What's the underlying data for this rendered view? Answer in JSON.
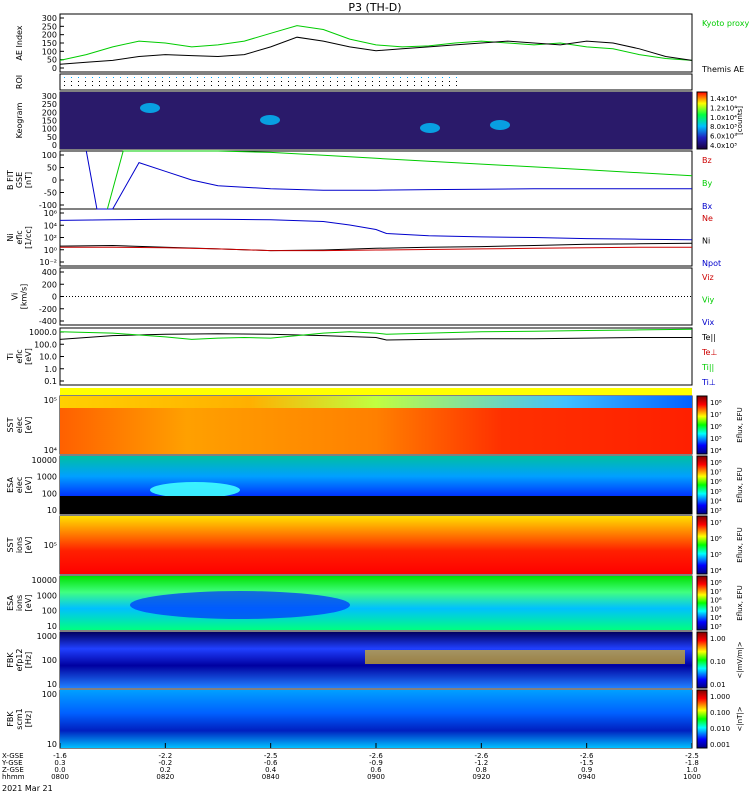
{
  "title": "P3 (TH-D)",
  "date_label": "2021 Mar 21",
  "colors": {
    "green": "#00cc00",
    "black": "#000000",
    "red": "#cc0000",
    "blue": "#0000cc"
  },
  "xaxis": {
    "row_labels": [
      "X-GSE",
      "Y-GSE",
      "Z-GSE",
      "hhmm"
    ],
    "ticks": [
      {
        "x": [
          "-1.6",
          "0.3",
          "0.0"
        ],
        "time": "0800"
      },
      {
        "x": [
          "-2.2",
          "-0.2",
          "0.2"
        ],
        "time": "0820"
      },
      {
        "x": [
          "-2.5",
          "-0.6",
          "0.4"
        ],
        "time": "0840"
      },
      {
        "x": [
          "-2.6",
          "-0.9",
          "0.6"
        ],
        "time": "0900"
      },
      {
        "x": [
          "-2.6",
          "-1.2",
          "0.8"
        ],
        "time": "0920"
      },
      {
        "x": [
          "-2.6",
          "-1.5",
          "0.9"
        ],
        "time": "0940"
      },
      {
        "x": [
          "-2.5",
          "-1.8",
          "1.0"
        ],
        "time": "1000"
      }
    ]
  },
  "panels": [
    {
      "id": "ae",
      "ylabel": [
        "AE Index"
      ],
      "yticks": [
        "300",
        "250",
        "200",
        "150",
        "100",
        "50",
        "0"
      ],
      "legend": [
        {
          "text": "Kyoto proxy AE",
          "color": "#00cc00"
        },
        {
          "text": "Themis AE",
          "color": "#000000"
        }
      ]
    },
    {
      "id": "roi",
      "ylabel": [
        "ROI"
      ],
      "yticks": []
    },
    {
      "id": "keogram",
      "ylabel": [
        "Keogram"
      ],
      "yticks": [
        "300",
        "250",
        "200",
        "150",
        "100",
        "50",
        "0"
      ],
      "cbar": {
        "ticks": [
          "1.4x10⁴",
          "1.2x10⁴",
          "1.0x10⁴",
          "8.0x10³",
          "6.0x10³",
          "4.0x10³"
        ],
        "label": "[counts]"
      }
    },
    {
      "id": "bfield",
      "ylabel": [
        "B FIT",
        "GSE",
        "[nT]"
      ],
      "yticks": [
        "100",
        "50",
        "0",
        "-50",
        "-100"
      ],
      "legend": [
        {
          "text": "Bz",
          "color": "#cc0000"
        },
        {
          "text": "By",
          "color": "#00cc00"
        },
        {
          "text": "Bx",
          "color": "#0000cc"
        }
      ]
    },
    {
      "id": "density",
      "ylabel": [
        "Ni",
        "eflc",
        "[1/cc]"
      ],
      "yticks": [
        "10⁶",
        "10⁴",
        "10²",
        "10⁰",
        "10⁻²"
      ],
      "legend": [
        {
          "text": "Ne",
          "color": "#cc0000"
        },
        {
          "text": "Ni",
          "color": "#000000"
        },
        {
          "text": "Npot",
          "color": "#0000cc"
        }
      ]
    },
    {
      "id": "velocity",
      "ylabel": [
        "Vi",
        "[km/s]"
      ],
      "yticks": [
        "400",
        "200",
        "0",
        "-200",
        "-400"
      ],
      "legend": [
        {
          "text": "Viz",
          "color": "#cc0000"
        },
        {
          "text": "Viy",
          "color": "#00cc00"
        },
        {
          "text": "Vix",
          "color": "#0000cc"
        }
      ]
    },
    {
      "id": "temp",
      "ylabel": [
        "Ti",
        "eflc",
        "[eV]"
      ],
      "yticks": [
        "1000.0",
        "100.0",
        "10.0",
        "1.0",
        "0.1"
      ],
      "legend": [
        {
          "text": "Te||",
          "color": "#000000"
        },
        {
          "text": "Te⊥",
          "color": "#cc0000"
        },
        {
          "text": "Ti||",
          "color": "#00cc00"
        },
        {
          "text": "Ti⊥",
          "color": "#0000cc"
        }
      ]
    },
    {
      "id": "sst_e",
      "ylabel": [
        "SST",
        "elec",
        "[eV]"
      ],
      "yticks": [
        "10⁵",
        "10⁴"
      ],
      "cbar": {
        "ticks": [
          "10⁸",
          "10⁷",
          "10⁶",
          "10⁵",
          "10⁴"
        ],
        "label": "Eflux, EFU"
      }
    },
    {
      "id": "esa_e",
      "ylabel": [
        "ESA",
        "elec",
        "[eV]"
      ],
      "yticks": [
        "10000",
        "1000",
        "100",
        "10"
      ],
      "cbar": {
        "ticks": [
          "10⁸",
          "10⁷",
          "10⁶",
          "10⁵",
          "10⁴",
          "10³"
        ],
        "label": "Eflux, EFU"
      }
    },
    {
      "id": "sst_i",
      "ylabel": [
        "SST",
        "ions",
        "[eV]"
      ],
      "yticks": [
        "10⁵"
      ],
      "cbar": {
        "ticks": [
          "10⁷",
          "10⁶",
          "10⁵",
          "10⁴"
        ],
        "label": "Eflux, EFU"
      }
    },
    {
      "id": "esa_i",
      "ylabel": [
        "ESA",
        "ions",
        "[eV]"
      ],
      "yticks": [
        "10000",
        "1000",
        "100",
        "10"
      ],
      "cbar": {
        "ticks": [
          "10⁸",
          "10⁷",
          "10⁶",
          "10⁵",
          "10⁴",
          "10³"
        ],
        "label": "Eflux, EFU"
      }
    },
    {
      "id": "fbk_e",
      "ylabel": [
        "FBK",
        "efp12",
        "[Hz]"
      ],
      "yticks": [
        "1000",
        "100",
        "10"
      ],
      "cbar": {
        "ticks": [
          "1.00",
          "0.10",
          "0.01"
        ],
        "label": "<|mV/m|>"
      }
    },
    {
      "id": "fbk_b",
      "ylabel": [
        "FBK",
        "scm1",
        "[Hz]"
      ],
      "yticks": [
        "100",
        "10"
      ],
      "cbar": {
        "ticks": [
          "1.000",
          "0.100",
          "0.010",
          "0.001"
        ],
        "label": "<|nT|>"
      }
    }
  ],
  "chart_data": {
    "type": "line",
    "title": "P3 (TH-D)",
    "x": {
      "label": "hhmm",
      "ticks": [
        "0800",
        "0820",
        "0840",
        "0900",
        "0920",
        "0940",
        "1000"
      ]
    },
    "ae_index": {
      "ylim": [
        0,
        300
      ],
      "series": [
        {
          "name": "Kyoto proxy AE",
          "color": "#00cc00",
          "time_min": [
            0,
            5,
            10,
            15,
            20,
            25,
            30,
            35,
            40,
            45,
            50,
            55,
            60,
            65,
            70,
            75,
            80,
            85,
            90,
            95,
            100,
            105,
            110,
            115,
            120
          ],
          "values": [
            60,
            90,
            130,
            160,
            150,
            130,
            140,
            160,
            200,
            240,
            220,
            170,
            140,
            130,
            135,
            150,
            160,
            150,
            140,
            150,
            130,
            120,
            90,
            70,
            60
          ]
        },
        {
          "name": "Themis AE",
          "color": "#000000",
          "time_min": [
            0,
            5,
            10,
            15,
            20,
            25,
            30,
            35,
            40,
            45,
            50,
            55,
            60,
            65,
            70,
            75,
            80,
            85,
            90,
            95,
            100,
            105,
            110,
            115,
            120
          ],
          "values": [
            40,
            50,
            60,
            80,
            90,
            85,
            80,
            90,
            130,
            180,
            160,
            130,
            110,
            120,
            130,
            140,
            150,
            160,
            150,
            140,
            160,
            150,
            120,
            80,
            60
          ]
        }
      ]
    },
    "b_field": {
      "ylim": [
        -100,
        100
      ],
      "series": [
        {
          "name": "Bx",
          "color": "#0000cc",
          "time_min": [
            5,
            7,
            10,
            15,
            20,
            25,
            30,
            40,
            50,
            60,
            70,
            80,
            90,
            100,
            110,
            120
          ],
          "values": [
            100,
            -100,
            -100,
            60,
            30,
            0,
            -20,
            -30,
            -35,
            -35,
            -33,
            -32,
            -30,
            -30,
            -30,
            -30
          ]
        },
        {
          "name": "By",
          "color": "#00cc00",
          "time_min": [
            9,
            12,
            15,
            20,
            30,
            40,
            50,
            60,
            70,
            80,
            90,
            100,
            110,
            120
          ],
          "values": [
            -100,
            100,
            100,
            100,
            100,
            95,
            85,
            75,
            65,
            55,
            45,
            35,
            25,
            15
          ]
        },
        {
          "name": "Bz",
          "color": "#cc0000",
          "time_min": [],
          "values": []
        }
      ]
    },
    "density": {
      "ylim_log": [
        -3,
        7
      ],
      "series": [
        {
          "name": "Npot",
          "color": "#0000cc",
          "time_min": [
            0,
            10,
            20,
            30,
            40,
            50,
            55,
            60,
            62,
            70,
            80,
            90,
            100,
            110,
            120
          ],
          "values": [
            5,
            5.1,
            5.2,
            5.2,
            5.1,
            4.8,
            4.2,
            3.4,
            2.7,
            2.3,
            2.1,
            2.0,
            1.8,
            1.7,
            1.6
          ]
        },
        {
          "name": "Ni",
          "color": "#000000",
          "time_min": [
            0,
            10,
            20,
            30,
            40,
            50,
            60,
            70,
            80,
            90,
            100,
            110,
            120
          ],
          "values": [
            0.5,
            0.6,
            0.3,
            0.0,
            -0.3,
            -0.2,
            0.1,
            0.3,
            0.4,
            0.6,
            0.8,
            0.9,
            1.0
          ]
        },
        {
          "name": "Ne",
          "color": "#cc0000",
          "time_min": [
            0,
            10,
            20,
            30,
            40,
            50,
            60,
            70,
            80,
            90,
            100,
            110,
            120
          ],
          "values": [
            0.3,
            0.3,
            0.2,
            0.0,
            -0.3,
            -0.3,
            -0.2,
            -0.1,
            0.0,
            0.1,
            0.2,
            0.3,
            0.3
          ]
        }
      ]
    },
    "velocity": {
      "ylim": [
        -400,
        400
      ],
      "series": [
        {
          "name": "Vix",
          "color": "#0000cc",
          "time_min": [
            0,
            120
          ],
          "values": [
            0,
            0
          ]
        }
      ]
    },
    "temperature": {
      "ylim_log": [
        -1,
        3.5
      ],
      "series": [
        {
          "name": "Te||",
          "color": "#000000",
          "time_min": [
            0,
            10,
            20,
            30,
            40,
            50,
            60,
            62,
            70,
            80,
            90,
            100,
            110,
            120
          ],
          "values": [
            2.6,
            2.9,
            3.0,
            3.05,
            3.0,
            2.9,
            2.75,
            2.55,
            2.6,
            2.65,
            2.65,
            2.7,
            2.75,
            2.75
          ]
        },
        {
          "name": "Ti||",
          "color": "#00cc00",
          "time_min": [
            0,
            10,
            20,
            25,
            30,
            35,
            40,
            45,
            50,
            55,
            60,
            62,
            70,
            80,
            90,
            100,
            110,
            120
          ],
          "values": [
            3.2,
            3.1,
            2.8,
            2.6,
            2.7,
            2.75,
            2.7,
            2.9,
            3.1,
            3.2,
            3.1,
            3.0,
            3.1,
            3.2,
            3.25,
            3.3,
            3.35,
            3.4
          ]
        }
      ]
    }
  }
}
